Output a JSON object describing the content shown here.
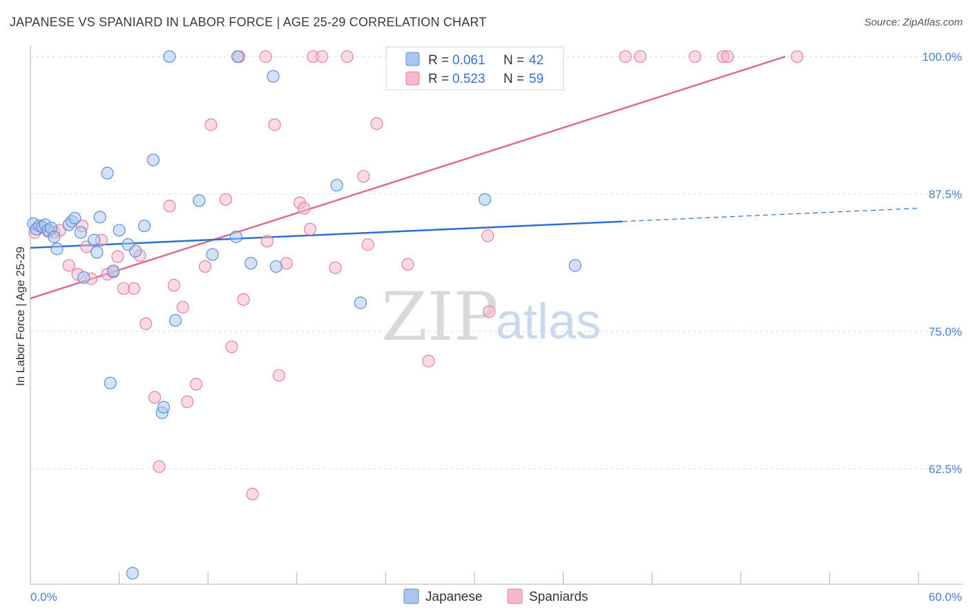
{
  "header": {
    "title": "JAPANESE VS SPANIARD IN LABOR FORCE | AGE 25-29 CORRELATION CHART",
    "source": "Source: ZipAtlas.com"
  },
  "watermark": {
    "zip": "ZIP",
    "atlas": "atlas"
  },
  "legend": {
    "japanese": {
      "r_label": "R =",
      "r_value": "0.061",
      "n_label": "N =",
      "n_value": "42"
    },
    "spaniards": {
      "r_label": "R =",
      "r_value": "0.523",
      "n_label": "N =",
      "n_value": "59"
    }
  },
  "bottom_legend": {
    "japanese": "Japanese",
    "spaniards": "Spaniards"
  },
  "colors": {
    "japanese_fill": "#a9c6ef",
    "japanese_stroke": "#5b8fd6",
    "japanese_line": "#2a6fd0",
    "spaniards_fill": "#f6b8cb",
    "spaniards_stroke": "#e57fa0",
    "spaniards_line": "#e06892",
    "grid": "#dddddd",
    "tick_label": "#4a7cc7"
  },
  "chart_data": {
    "type": "scatter",
    "title": "JAPANESE VS SPANIARD IN LABOR FORCE | AGE 25-29 CORRELATION CHART",
    "xlabel": "",
    "ylabel": "In Labor Force | Age 25-29",
    "xlim": [
      0,
      60
    ],
    "ylim": [
      52,
      101
    ],
    "x_tick_labels": [
      "0.0%",
      "60.0%"
    ],
    "y_ticks": [
      62.5,
      75.0,
      87.5,
      100.0
    ],
    "y_tick_labels": [
      "62.5%",
      "75.0%",
      "87.5%",
      "100.0%"
    ],
    "grid": true,
    "legend_position": "top-center",
    "series": [
      {
        "name": "Japanese",
        "r": 0.061,
        "n": 42,
        "trend": {
          "x0": 0,
          "y0": 82.6,
          "x1": 40,
          "y1": 85.0,
          "dashed_to_x": 60,
          "dashed_to_y": 86.2
        },
        "points": [
          [
            0.2,
            84.8
          ],
          [
            0.4,
            84.3
          ],
          [
            0.6,
            84.6
          ],
          [
            0.8,
            84.5
          ],
          [
            1.0,
            84.7
          ],
          [
            1.2,
            84.2
          ],
          [
            1.4,
            84.4
          ],
          [
            1.6,
            83.6
          ],
          [
            1.8,
            82.5
          ],
          [
            2.6,
            84.7
          ],
          [
            2.8,
            85.0
          ],
          [
            3.0,
            85.3
          ],
          [
            3.4,
            84.0
          ],
          [
            3.6,
            79.9
          ],
          [
            4.3,
            83.3
          ],
          [
            4.5,
            82.2
          ],
          [
            4.7,
            85.4
          ],
          [
            5.2,
            89.4
          ],
          [
            5.4,
            70.3
          ],
          [
            5.6,
            80.5
          ],
          [
            6.0,
            84.2
          ],
          [
            6.6,
            82.9
          ],
          [
            6.9,
            53.0
          ],
          [
            7.1,
            82.3
          ],
          [
            7.7,
            84.6
          ],
          [
            8.3,
            90.6
          ],
          [
            8.9,
            67.6
          ],
          [
            9.0,
            68.1
          ],
          [
            9.4,
            100.0
          ],
          [
            9.8,
            76.0
          ],
          [
            11.4,
            86.9
          ],
          [
            12.3,
            82.0
          ],
          [
            13.9,
            83.6
          ],
          [
            14.0,
            100.0
          ],
          [
            14.9,
            81.2
          ],
          [
            16.4,
            98.2
          ],
          [
            16.6,
            80.9
          ],
          [
            20.7,
            88.3
          ],
          [
            22.3,
            77.6
          ],
          [
            30.0,
            100.0
          ],
          [
            30.7,
            87.0
          ],
          [
            36.8,
            81.0
          ]
        ]
      },
      {
        "name": "Spaniards",
        "r": 0.523,
        "n": 59,
        "trend": {
          "x0": 0,
          "y0": 78.0,
          "x1": 51,
          "y1": 100.0
        },
        "points": [
          [
            0.3,
            84.0
          ],
          [
            0.8,
            84.5
          ],
          [
            1.2,
            84.1
          ],
          [
            1.6,
            84.0
          ],
          [
            2.0,
            84.2
          ],
          [
            2.6,
            81.0
          ],
          [
            3.2,
            80.2
          ],
          [
            3.5,
            84.6
          ],
          [
            3.8,
            82.7
          ],
          [
            4.1,
            79.8
          ],
          [
            4.8,
            83.3
          ],
          [
            5.2,
            80.2
          ],
          [
            5.6,
            80.4
          ],
          [
            5.9,
            81.8
          ],
          [
            6.3,
            78.9
          ],
          [
            7.0,
            78.9
          ],
          [
            7.4,
            81.9
          ],
          [
            7.8,
            75.7
          ],
          [
            8.4,
            69.0
          ],
          [
            8.7,
            62.7
          ],
          [
            9.4,
            86.4
          ],
          [
            9.7,
            79.2
          ],
          [
            10.3,
            77.2
          ],
          [
            10.6,
            68.6
          ],
          [
            11.2,
            70.2
          ],
          [
            11.8,
            80.9
          ],
          [
            12.2,
            93.8
          ],
          [
            13.2,
            87.0
          ],
          [
            13.6,
            73.6
          ],
          [
            14.1,
            100.0
          ],
          [
            14.4,
            77.9
          ],
          [
            15.0,
            60.2
          ],
          [
            15.9,
            100.0
          ],
          [
            16.0,
            83.2
          ],
          [
            16.5,
            93.8
          ],
          [
            16.8,
            71.0
          ],
          [
            17.3,
            81.2
          ],
          [
            18.2,
            86.7
          ],
          [
            18.5,
            86.2
          ],
          [
            18.9,
            84.3
          ],
          [
            19.1,
            100.0
          ],
          [
            19.7,
            100.0
          ],
          [
            20.6,
            80.8
          ],
          [
            21.4,
            100.0
          ],
          [
            22.5,
            89.1
          ],
          [
            22.8,
            82.9
          ],
          [
            23.4,
            93.9
          ],
          [
            24.5,
            100.0
          ],
          [
            25.5,
            81.1
          ],
          [
            26.9,
            72.3
          ],
          [
            29.8,
            100.0
          ],
          [
            30.9,
            83.7
          ],
          [
            31.0,
            76.8
          ],
          [
            40.2,
            100.0
          ],
          [
            41.2,
            100.0
          ],
          [
            44.9,
            100.0
          ],
          [
            46.8,
            100.0
          ],
          [
            47.1,
            100.0
          ],
          [
            51.8,
            100.0
          ]
        ]
      }
    ]
  }
}
